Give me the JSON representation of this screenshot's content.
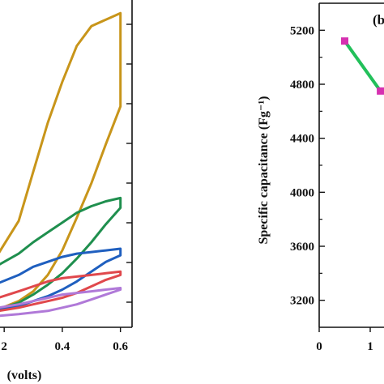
{
  "chart_data": [
    {
      "type": "line",
      "title": "",
      "xlabel": "(volts)",
      "ylabel": "",
      "x_ticks": [
        "2",
        "0.4",
        "0.6"
      ],
      "xlim": [
        0.18,
        0.64
      ],
      "ylim": [
        -1.0,
        1.0
      ],
      "grid": false,
      "series": [
        {
          "color": "#c8951a",
          "upper": [
            [
              0.18,
              -0.55
            ],
            [
              0.25,
              -0.35
            ],
            [
              0.3,
              -0.05
            ],
            [
              0.35,
              0.25
            ],
            [
              0.4,
              0.5
            ],
            [
              0.45,
              0.72
            ],
            [
              0.5,
              0.84
            ],
            [
              0.55,
              0.88
            ],
            [
              0.6,
              0.92
            ]
          ],
          "lower": [
            [
              0.18,
              -0.89
            ],
            [
              0.25,
              -0.84
            ],
            [
              0.3,
              -0.78
            ],
            [
              0.35,
              -0.68
            ],
            [
              0.4,
              -0.53
            ],
            [
              0.45,
              -0.33
            ],
            [
              0.5,
              -0.12
            ],
            [
              0.55,
              0.12
            ],
            [
              0.6,
              0.35
            ]
          ]
        },
        {
          "color": "#1f8f4e",
          "upper": [
            [
              0.18,
              -0.62
            ],
            [
              0.25,
              -0.55
            ],
            [
              0.3,
              -0.48
            ],
            [
              0.35,
              -0.42
            ],
            [
              0.4,
              -0.36
            ],
            [
              0.45,
              -0.3
            ],
            [
              0.5,
              -0.26
            ],
            [
              0.55,
              -0.23
            ],
            [
              0.6,
              -0.21
            ]
          ],
          "lower": [
            [
              0.18,
              -0.89
            ],
            [
              0.25,
              -0.85
            ],
            [
              0.3,
              -0.8
            ],
            [
              0.35,
              -0.74
            ],
            [
              0.4,
              -0.67
            ],
            [
              0.45,
              -0.58
            ],
            [
              0.5,
              -0.48
            ],
            [
              0.55,
              -0.37
            ],
            [
              0.6,
              -0.27
            ]
          ]
        },
        {
          "color": "#1f5fbf",
          "upper": [
            [
              0.18,
              -0.73
            ],
            [
              0.25,
              -0.68
            ],
            [
              0.3,
              -0.63
            ],
            [
              0.35,
              -0.6
            ],
            [
              0.4,
              -0.57
            ],
            [
              0.45,
              -0.55
            ],
            [
              0.5,
              -0.54
            ],
            [
              0.55,
              -0.53
            ],
            [
              0.6,
              -0.52
            ]
          ],
          "lower": [
            [
              0.18,
              -0.89
            ],
            [
              0.25,
              -0.87
            ],
            [
              0.3,
              -0.84
            ],
            [
              0.35,
              -0.81
            ],
            [
              0.4,
              -0.77
            ],
            [
              0.45,
              -0.72
            ],
            [
              0.5,
              -0.66
            ],
            [
              0.55,
              -0.6
            ],
            [
              0.6,
              -0.56
            ]
          ]
        },
        {
          "color": "#e0484c",
          "upper": [
            [
              0.18,
              -0.82
            ],
            [
              0.25,
              -0.78
            ],
            [
              0.3,
              -0.75
            ],
            [
              0.35,
              -0.72
            ],
            [
              0.4,
              -0.7
            ],
            [
              0.45,
              -0.69
            ],
            [
              0.5,
              -0.68
            ],
            [
              0.55,
              -0.67
            ],
            [
              0.6,
              -0.66
            ]
          ],
          "lower": [
            [
              0.18,
              -0.9
            ],
            [
              0.25,
              -0.88
            ],
            [
              0.3,
              -0.86
            ],
            [
              0.35,
              -0.84
            ],
            [
              0.4,
              -0.82
            ],
            [
              0.45,
              -0.79
            ],
            [
              0.5,
              -0.75
            ],
            [
              0.55,
              -0.71
            ],
            [
              0.6,
              -0.68
            ]
          ]
        },
        {
          "color": "#b079d8",
          "upper": [
            [
              0.18,
              -0.88
            ],
            [
              0.25,
              -0.86
            ],
            [
              0.3,
              -0.84
            ],
            [
              0.35,
              -0.82
            ],
            [
              0.4,
              -0.8
            ],
            [
              0.45,
              -0.79
            ],
            [
              0.5,
              -0.78
            ],
            [
              0.55,
              -0.77
            ],
            [
              0.6,
              -0.76
            ]
          ],
          "lower": [
            [
              0.18,
              -0.93
            ],
            [
              0.25,
              -0.92
            ],
            [
              0.3,
              -0.91
            ],
            [
              0.35,
              -0.9
            ],
            [
              0.4,
              -0.88
            ],
            [
              0.45,
              -0.86
            ],
            [
              0.5,
              -0.83
            ],
            [
              0.55,
              -0.8
            ],
            [
              0.6,
              -0.77
            ]
          ]
        }
      ]
    },
    {
      "type": "line",
      "title": "",
      "panel_label": "(b",
      "xlabel": "",
      "ylabel": "Specific capacitance (Fg⁻¹)",
      "x_ticks": [
        {
          "value": 0,
          "label": "0"
        },
        {
          "value": 1,
          "label": "1"
        }
      ],
      "y_ticks": [
        3200,
        3600,
        4000,
        4400,
        4800,
        5200
      ],
      "xlim": [
        0,
        2
      ],
      "ylim": [
        3000,
        5400
      ],
      "grid": false,
      "series": [
        {
          "color": "#22c05a",
          "marker_color": "#d630b0",
          "x": [
            0.5,
            1.2
          ],
          "y": [
            5120,
            4750
          ]
        }
      ]
    }
  ]
}
